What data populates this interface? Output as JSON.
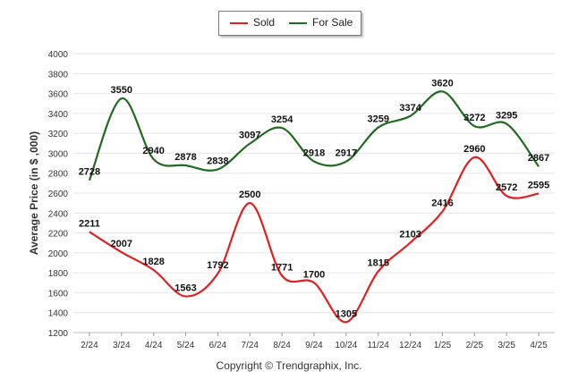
{
  "chart_data": {
    "type": "line",
    "categories": [
      "2/24",
      "3/24",
      "4/24",
      "5/24",
      "6/24",
      "7/24",
      "8/24",
      "9/24",
      "10/24",
      "11/24",
      "12/24",
      "1/25",
      "2/25",
      "3/25",
      "4/25"
    ],
    "series": [
      {
        "name": "Sold",
        "color": "#e02020",
        "values": [
          2211,
          2007,
          1828,
          1563,
          1792,
          2500,
          1771,
          1700,
          1305,
          1815,
          2103,
          2416,
          2960,
          2572,
          2595
        ]
      },
      {
        "name": "For Sale",
        "color": "#1f6b1f",
        "values": [
          2728,
          3550,
          2940,
          2878,
          2838,
          3097,
          3254,
          2918,
          2917,
          3259,
          3374,
          3620,
          3272,
          3295,
          2867
        ]
      }
    ],
    "ylabel": "Average Price (in $ ,000)",
    "xlabel": "",
    "ylim": [
      1200,
      4000
    ],
    "yticks": [
      1200,
      1400,
      1600,
      1800,
      2000,
      2200,
      2400,
      2600,
      2800,
      3000,
      3200,
      3400,
      3600,
      3800,
      4000
    ],
    "grid": true,
    "legend_position": "top-center"
  },
  "footer": "Copyright © Trendgraphix, Inc."
}
